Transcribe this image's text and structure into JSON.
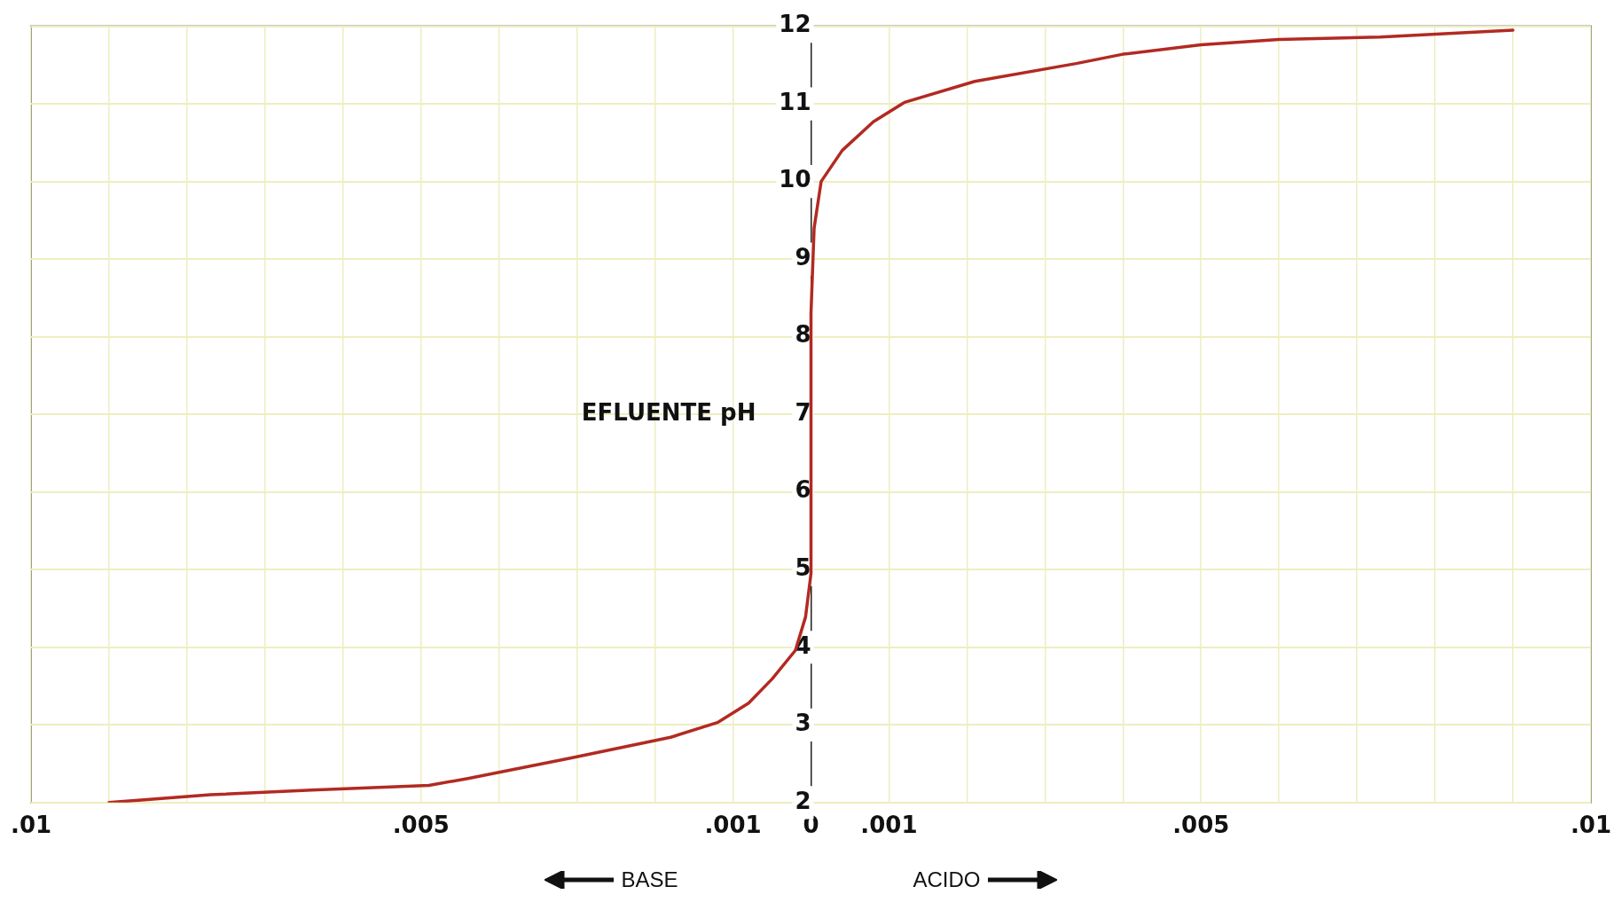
{
  "chart_data": {
    "type": "line",
    "ylabel": "EFLUENTE pH",
    "annotations": [
      "BASE",
      "ACIDO"
    ],
    "xlim": [
      -0.01,
      0.01
    ],
    "ylim": [
      2,
      12
    ],
    "xticks": [
      {
        "value": -0.01,
        "label": ".01"
      },
      {
        "value": -0.009,
        "label": null
      },
      {
        "value": -0.008,
        "label": null
      },
      {
        "value": -0.007,
        "label": null
      },
      {
        "value": -0.006,
        "label": null
      },
      {
        "value": -0.005,
        "label": ".005"
      },
      {
        "value": -0.004,
        "label": null
      },
      {
        "value": -0.003,
        "label": null
      },
      {
        "value": -0.002,
        "label": null
      },
      {
        "value": -0.001,
        "label": ".001"
      },
      0,
      {
        "value": 0.001,
        "label": ".001"
      },
      {
        "value": 0.002,
        "label": null
      },
      {
        "value": 0.003,
        "label": null
      },
      {
        "value": 0.004,
        "label": null
      },
      {
        "value": 0.005,
        "label": ".005"
      },
      {
        "value": 0.006,
        "label": null
      },
      {
        "value": 0.007,
        "label": null
      },
      {
        "value": 0.008,
        "label": null
      },
      {
        "value": 0.009,
        "label": null
      },
      {
        "value": 0.01,
        "label": ".01"
      }
    ],
    "yticks": [
      2,
      3,
      4,
      5,
      6,
      7,
      8,
      9,
      10,
      11,
      12
    ],
    "grid": true,
    "legend": false,
    "marker": "none",
    "line_style": "solid",
    "series": [
      {
        "color": "#b22a22",
        "x": [
          -0.009,
          -0.0077,
          -0.0064,
          -0.0049,
          -0.0044,
          -0.0031,
          -0.0018,
          -0.0012,
          -0.0008,
          -0.0005,
          -0.0002,
          -7e-05,
          0,
          0,
          4e-05,
          0.00013,
          0.0004,
          0.0008,
          0.0012,
          0.0021,
          0.0034,
          0.004,
          0.005,
          0.006,
          0.0073,
          0.009
        ],
        "values": [
          2,
          2.1,
          2.16,
          2.22,
          2.31,
          2.57,
          2.84,
          3.03,
          3.28,
          3.59,
          3.96,
          4.39,
          4.95,
          8.3,
          9.4,
          10,
          10.4,
          10.77,
          11.02,
          11.29,
          11.52,
          11.64,
          11.76,
          11.83,
          11.86,
          11.95
        ]
      }
    ]
  }
}
